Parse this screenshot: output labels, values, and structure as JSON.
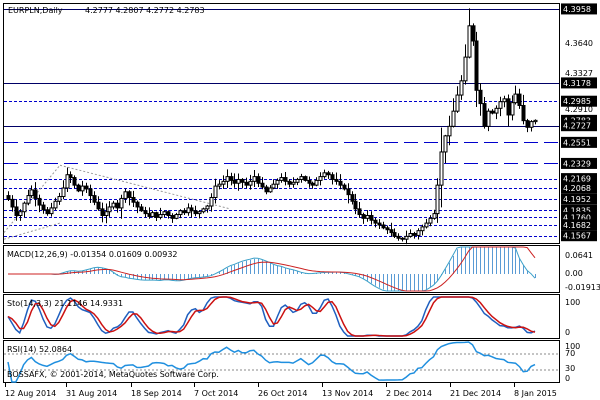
{
  "header": {
    "symbol": "EURPLN,Daily",
    "ohlc": "4.2777 4.2807 4.2772 4.2783"
  },
  "colors": {
    "background": "#ffffff",
    "grid_blue": "#0000cc",
    "label_fill": "#000000",
    "label_text": "#ffffff",
    "candle": "#000000",
    "macd_hist": "#5a9bd5",
    "macd_signal": "#cc2222",
    "macd_main": "#3aa0c8",
    "sto_main": "#1f5fbf",
    "sto_signal": "#cc1111",
    "rsi_line": "#1f8fdf",
    "dotted": "#999999"
  },
  "price_panel": {
    "yrange": [
      4.149,
      4.401
    ],
    "plain_labels": [
      "4.3640",
      "4.3327",
      "4.2910"
    ],
    "boxed_labels": [
      {
        "value": 4.3958,
        "text": "4.3958"
      },
      {
        "value": 4.3178,
        "text": "4.3178"
      },
      {
        "value": 4.2985,
        "text": "4.2985"
      },
      {
        "value": 4.2783,
        "text": "4.2783"
      },
      {
        "value": 4.2727,
        "text": "4.2727"
      },
      {
        "value": 4.2551,
        "text": "4.2551"
      },
      {
        "value": 4.2329,
        "text": "4.2329"
      },
      {
        "value": 4.2169,
        "text": "4.2169"
      },
      {
        "value": 4.2068,
        "text": "4.2068"
      },
      {
        "value": 4.1952,
        "text": "4.1952"
      },
      {
        "value": 4.1835,
        "text": "4.1835"
      },
      {
        "value": 4.176,
        "text": "4.1760"
      },
      {
        "value": 4.1682,
        "text": "4.1682"
      },
      {
        "value": 4.1567,
        "text": "4.1567"
      }
    ],
    "horizontal_levels": [
      {
        "value": 4.3958,
        "style": "solid"
      },
      {
        "value": 4.3178,
        "style": "solid"
      },
      {
        "value": 4.2985,
        "style": "dash"
      },
      {
        "value": 4.2727,
        "style": "solid"
      },
      {
        "value": 4.2551,
        "style": "longdash"
      },
      {
        "value": 4.2329,
        "style": "longdash"
      },
      {
        "value": 4.2169,
        "style": "dash"
      },
      {
        "value": 4.2068,
        "style": "dash"
      },
      {
        "value": 4.1952,
        "style": "dash"
      },
      {
        "value": 4.1835,
        "style": "dash"
      },
      {
        "value": 4.176,
        "style": "dash"
      },
      {
        "value": 4.1682,
        "style": "dash"
      },
      {
        "value": 4.1567,
        "style": "dash"
      }
    ]
  },
  "macd_panel": {
    "label": "MACD(12,26,9) -0.01354 0.01609 0.00932",
    "ticks": [
      "0.0641",
      "0.00",
      "-0.01913"
    ]
  },
  "sto_panel": {
    "label": "Sto(14,3,3) 21.1146 14.9331",
    "ticks": [
      "100",
      "0"
    ]
  },
  "rsi_panel": {
    "label": "RSI(14) 52.0864",
    "ticks": [
      "100",
      "70",
      "30",
      "0"
    ],
    "copyright": "BOSSAFX, © 2001-2014, MetaQuotes Software Corp."
  },
  "xaxis": {
    "ticks": [
      "12 Aug 2014",
      "31 Aug 2014",
      "18 Sep 2014",
      "7 Oct 2014",
      "26 Oct 2014",
      "13 Nov 2014",
      "2 Dec 2014",
      "21 Dec 2014",
      "8 Jan 2015"
    ]
  },
  "chart_data": {
    "type": "candlestick",
    "title": "EURPLN,Daily",
    "ohlc_last": [
      4.2777,
      4.2807,
      4.2772,
      4.2783
    ],
    "x_start": "12 Aug 2014",
    "x_end": "13 Jan 2015",
    "ylim": [
      4.149,
      4.401
    ],
    "close": [
      4.195,
      4.187,
      4.178,
      4.182,
      4.191,
      4.199,
      4.205,
      4.196,
      4.189,
      4.184,
      4.18,
      4.186,
      4.193,
      4.198,
      4.207,
      4.221,
      4.218,
      4.21,
      4.204,
      4.209,
      4.206,
      4.199,
      4.192,
      4.185,
      4.178,
      4.182,
      4.187,
      4.191,
      4.186,
      4.196,
      4.203,
      4.197,
      4.192,
      4.187,
      4.183,
      4.18,
      4.177,
      4.181,
      4.176,
      4.179,
      4.182,
      4.178,
      4.175,
      4.179,
      4.183,
      4.181,
      4.186,
      4.183,
      4.18,
      4.182,
      4.185,
      4.188,
      4.197,
      4.209,
      4.211,
      4.214,
      4.219,
      4.215,
      4.212,
      4.216,
      4.213,
      4.21,
      4.214,
      4.219,
      4.212,
      4.208,
      4.203,
      4.207,
      4.211,
      4.215,
      4.218,
      4.214,
      4.211,
      4.213,
      4.216,
      4.219,
      4.215,
      4.212,
      4.21,
      4.215,
      4.219,
      4.223,
      4.221,
      4.216,
      4.214,
      4.21,
      4.206,
      4.2,
      4.193,
      4.185,
      4.179,
      4.175,
      4.178,
      4.173,
      4.17,
      4.168,
      4.165,
      4.163,
      4.16,
      4.156,
      4.154,
      4.153,
      4.156,
      4.159,
      4.157,
      4.162,
      4.166,
      4.17,
      4.175,
      4.18,
      4.21,
      4.245,
      4.262,
      4.272,
      4.288,
      4.305,
      4.32,
      4.345,
      4.378,
      4.362,
      4.31,
      4.296,
      4.272,
      4.288,
      4.286,
      4.291,
      4.298,
      4.301,
      4.284,
      4.297,
      4.306,
      4.294,
      4.278,
      4.271,
      4.277,
      4.2783
    ],
    "macd": {
      "label": "MACD(12,26,9)",
      "values": [
        -0.01354,
        0.01609,
        0.00932
      ]
    },
    "stochastic": {
      "label": "Sto(14,3,3)",
      "main": 21.1146,
      "signal": 14.9331
    },
    "rsi": {
      "label": "RSI(14)",
      "value": 52.0864,
      "levels": [
        30,
        70
      ]
    }
  }
}
